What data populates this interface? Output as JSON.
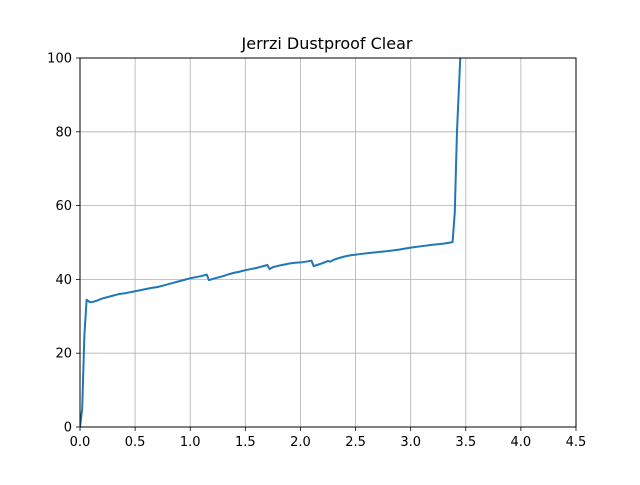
{
  "chart_data": {
    "type": "line",
    "title": "Jerrzi Dustproof Clear",
    "xlabel": "",
    "ylabel": "",
    "xlim": [
      0.0,
      4.5
    ],
    "ylim": [
      0,
      100
    ],
    "x_ticks": [
      0.0,
      0.5,
      1.0,
      1.5,
      2.0,
      2.5,
      3.0,
      3.5,
      4.0,
      4.5
    ],
    "x_tick_labels": [
      "0.0",
      "0.5",
      "1.0",
      "1.5",
      "2.0",
      "2.5",
      "3.0",
      "3.5",
      "4.0",
      "4.5"
    ],
    "y_ticks": [
      0,
      20,
      40,
      60,
      80,
      100
    ],
    "y_tick_labels": [
      "0",
      "20",
      "40",
      "60",
      "80",
      "100"
    ],
    "grid": true,
    "legend": "none",
    "series": [
      {
        "color": "#1f77b4",
        "x": [
          0.0,
          0.02,
          0.04,
          0.06,
          0.08,
          0.1,
          0.15,
          0.2,
          0.25,
          0.3,
          0.35,
          0.4,
          0.45,
          0.5,
          0.55,
          0.6,
          0.65,
          0.7,
          0.75,
          0.8,
          0.85,
          0.9,
          0.95,
          1.0,
          1.05,
          1.1,
          1.15,
          1.17,
          1.2,
          1.25,
          1.3,
          1.35,
          1.4,
          1.45,
          1.5,
          1.55,
          1.6,
          1.65,
          1.7,
          1.72,
          1.75,
          1.8,
          1.85,
          1.9,
          1.95,
          2.0,
          2.05,
          2.1,
          2.12,
          2.15,
          2.2,
          2.25,
          2.27,
          2.3,
          2.35,
          2.4,
          2.45,
          2.5,
          2.55,
          2.6,
          2.7,
          2.8,
          2.9,
          3.0,
          3.1,
          3.2,
          3.3,
          3.38,
          3.4,
          3.42,
          3.45
        ],
        "y": [
          0.0,
          5.0,
          25.0,
          34.5,
          34.0,
          33.8,
          34.2,
          34.8,
          35.2,
          35.6,
          36.0,
          36.2,
          36.5,
          36.8,
          37.1,
          37.4,
          37.7,
          37.9,
          38.3,
          38.7,
          39.1,
          39.5,
          39.9,
          40.3,
          40.6,
          40.9,
          41.3,
          39.8,
          40.1,
          40.5,
          40.9,
          41.4,
          41.8,
          42.1,
          42.5,
          42.8,
          43.1,
          43.5,
          43.9,
          42.8,
          43.3,
          43.7,
          44.0,
          44.3,
          44.5,
          44.6,
          44.8,
          45.1,
          43.6,
          43.9,
          44.4,
          45.0,
          44.8,
          45.3,
          45.8,
          46.2,
          46.5,
          46.7,
          46.9,
          47.1,
          47.4,
          47.7,
          48.1,
          48.6,
          49.0,
          49.4,
          49.7,
          50.1,
          58.0,
          80.0,
          100.0
        ]
      }
    ]
  }
}
